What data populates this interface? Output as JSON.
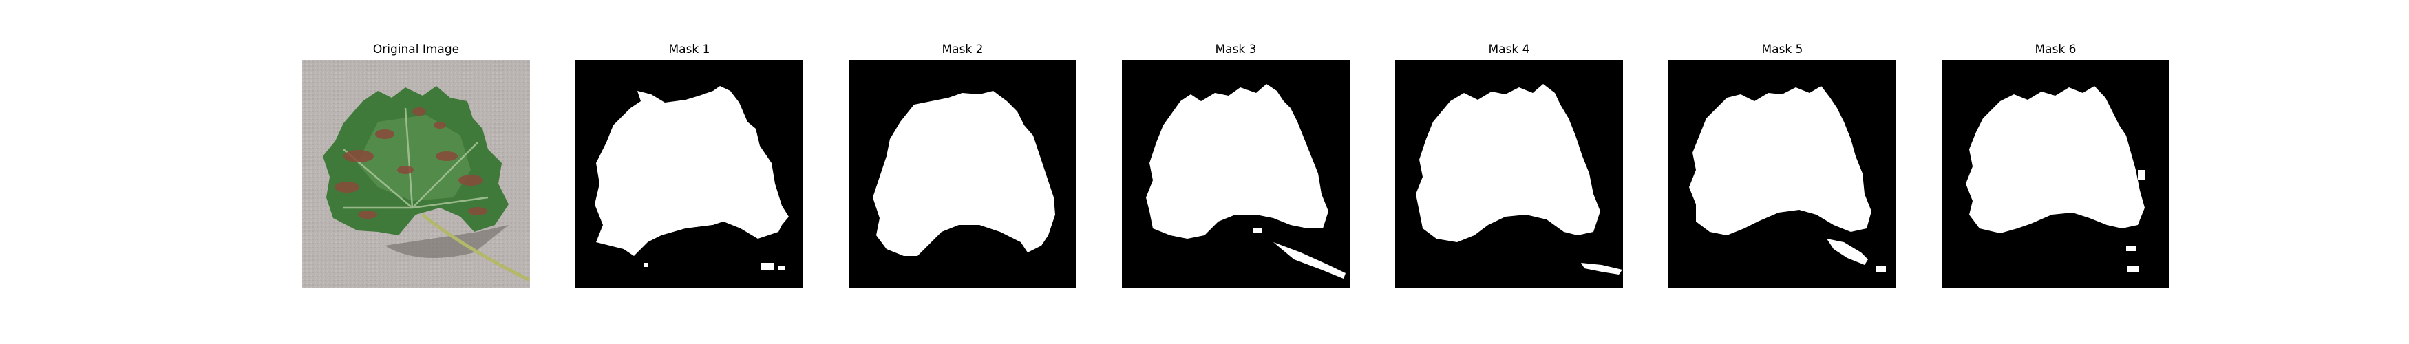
{
  "figure": {
    "panels": [
      {
        "title": "Original Image",
        "kind": "photo",
        "icon": "leaf-photo"
      },
      {
        "title": "Mask 1",
        "kind": "mask"
      },
      {
        "title": "Mask 2",
        "kind": "mask"
      },
      {
        "title": "Mask 3",
        "kind": "mask"
      },
      {
        "title": "Mask 4",
        "kind": "mask"
      },
      {
        "title": "Mask 5",
        "kind": "mask"
      },
      {
        "title": "Mask 6",
        "kind": "mask"
      }
    ],
    "colors": {
      "mask_background": "#000000",
      "mask_foreground": "#ffffff",
      "photo_background": "#b8b3b0",
      "leaf_green": "#3f7a3a",
      "leaf_spot": "#8a4a3a"
    }
  }
}
